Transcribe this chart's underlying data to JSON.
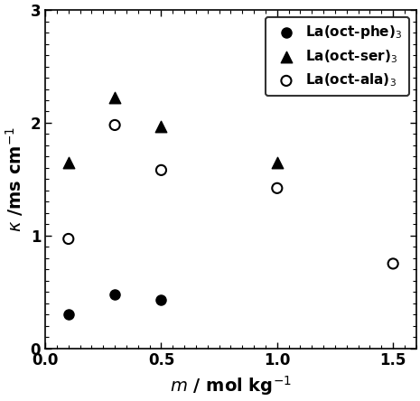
{
  "series": [
    {
      "label": "La(oct-phe)$_3$",
      "x": [
        0.1,
        0.3,
        0.5
      ],
      "y": [
        0.3,
        0.48,
        0.43
      ],
      "marker": "o",
      "color": "black",
      "filled": true,
      "markersize": 8
    },
    {
      "label": "La(oct-ser)$_3$",
      "x": [
        0.1,
        0.3,
        0.5,
        1.0
      ],
      "y": [
        1.65,
        2.22,
        1.97,
        1.65
      ],
      "marker": "^",
      "color": "black",
      "filled": true,
      "markersize": 9
    },
    {
      "label": "La(oct-ala)$_3$",
      "x": [
        0.1,
        0.3,
        0.5,
        1.0,
        1.5
      ],
      "y": [
        0.97,
        1.98,
        1.58,
        1.42,
        0.75
      ],
      "marker": "o",
      "color": "black",
      "filled": false,
      "markersize": 8
    }
  ],
  "xlabel": "$m$ / mol kg$^{-1}$",
  "ylabel": "$\\kappa$ /ms cm$^{-1}$",
  "xlim": [
    0,
    1.6
  ],
  "ylim": [
    0,
    3.0
  ],
  "xticks": [
    0,
    0.5,
    1.0,
    1.5
  ],
  "yticks": [
    0,
    1,
    2,
    3
  ],
  "legend_loc": "upper right",
  "background_color": "#ffffff",
  "label_fontsize": 14,
  "tick_fontsize": 12,
  "legend_fontsize": 11
}
